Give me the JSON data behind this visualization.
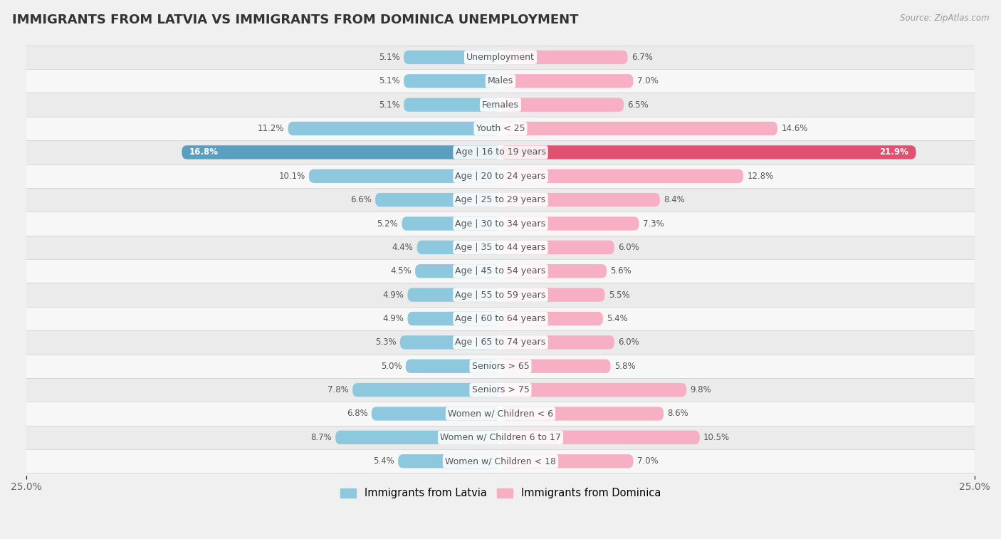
{
  "title": "IMMIGRANTS FROM LATVIA VS IMMIGRANTS FROM DOMINICA UNEMPLOYMENT",
  "source": "Source: ZipAtlas.com",
  "categories": [
    "Unemployment",
    "Males",
    "Females",
    "Youth < 25",
    "Age | 16 to 19 years",
    "Age | 20 to 24 years",
    "Age | 25 to 29 years",
    "Age | 30 to 34 years",
    "Age | 35 to 44 years",
    "Age | 45 to 54 years",
    "Age | 55 to 59 years",
    "Age | 60 to 64 years",
    "Age | 65 to 74 years",
    "Seniors > 65",
    "Seniors > 75",
    "Women w/ Children < 6",
    "Women w/ Children 6 to 17",
    "Women w/ Children < 18"
  ],
  "latvia_values": [
    5.1,
    5.1,
    5.1,
    11.2,
    16.8,
    10.1,
    6.6,
    5.2,
    4.4,
    4.5,
    4.9,
    4.9,
    5.3,
    5.0,
    7.8,
    6.8,
    8.7,
    5.4
  ],
  "dominica_values": [
    6.7,
    7.0,
    6.5,
    14.6,
    21.9,
    12.8,
    8.4,
    7.3,
    6.0,
    5.6,
    5.5,
    5.4,
    6.0,
    5.8,
    9.8,
    8.6,
    10.5,
    7.0
  ],
  "latvia_color": "#8ec8df",
  "dominica_color": "#f7afc4",
  "latvia_highlight_color": "#5a9fc0",
  "dominica_highlight_color": "#e05070",
  "row_color_even": "#ebebeb",
  "row_color_odd": "#f7f7f7",
  "bg_color": "#f0f0f0",
  "xlim": 25.0,
  "legend_latvia": "Immigrants from Latvia",
  "legend_dominica": "Immigrants from Dominica",
  "title_fontsize": 13,
  "label_fontsize": 9,
  "value_fontsize": 8.5,
  "bar_height": 0.58,
  "highlight_row": 4
}
